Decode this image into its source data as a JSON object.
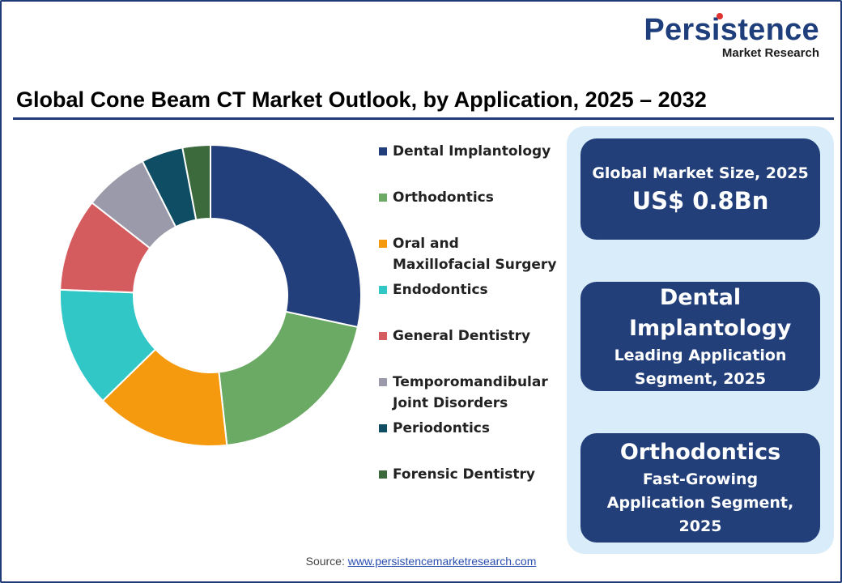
{
  "logo": {
    "main": "Persistence",
    "sub": "Market Research"
  },
  "title": "Global Cone Beam CT Market Outlook, by Application, 2025 – 2032",
  "chart_data": {
    "type": "pie",
    "title": "Global Cone Beam CT Market Outlook, by Application, 2025 – 2032",
    "donut": true,
    "categories": [
      "Dental Implantology",
      "Orthodontics",
      "Oral and Maxillofacial Surgery",
      "Endodontics",
      "General Dentistry",
      "Temporomandibular Joint Disorders",
      "Periodontics",
      "Forensic Dentistry"
    ],
    "values": [
      28.5,
      20.0,
      14.5,
      13.0,
      10.0,
      7.0,
      4.5,
      3.0
    ],
    "colors": [
      "#233f7b",
      "#6aaa64",
      "#f59a0f",
      "#31c7c7",
      "#d55c5e",
      "#9b9aaa",
      "#0e4d63",
      "#3d6a3c"
    ]
  },
  "legend": [
    {
      "label": "Dental Implantology"
    },
    {
      "label": "Orthodontics"
    },
    {
      "label": "Oral and Maxillofacial Surgery"
    },
    {
      "label": "Endodontics"
    },
    {
      "label": "General Dentistry"
    },
    {
      "label": "Temporomandibular Joint Disorders"
    },
    {
      "label": "Periodontics"
    },
    {
      "label": "Forensic Dentistry"
    }
  ],
  "cards": {
    "market": {
      "label": "Global Market Size, 2025",
      "value": "US$ 0.8Bn"
    },
    "leading": {
      "name": "Dental Implantology",
      "desc": "Leading Application Segment, 2025"
    },
    "growing": {
      "name": "Orthodontics",
      "desc": "Fast-Growing Application Segment, 2025"
    }
  },
  "source": {
    "prefix": "Source:",
    "link": "www.persistencemarketresearch.com"
  }
}
